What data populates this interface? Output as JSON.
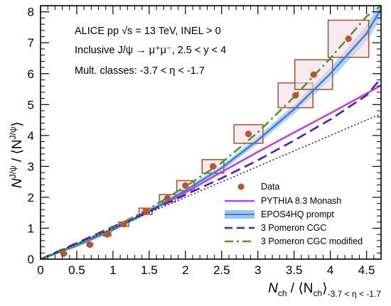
{
  "chart_data": {
    "type": "scatter",
    "title": "",
    "xlabel": {
      "main": "N",
      "main_sub": "ch",
      "mid": " / ⟨N",
      "mid_sub": "ch",
      "close": "⟩",
      "range_sub": "-3.7 < η < -1.7"
    },
    "ylabel": {
      "main": "N",
      "main_sup": "J/ψ",
      "mid": " / ⟨N",
      "mid_sup": "J/ψ",
      "close": "⟩"
    },
    "xlim": [
      0,
      4.7
    ],
    "ylim": [
      0,
      8.2
    ],
    "x_ticks": [
      0,
      0.5,
      1,
      1.5,
      2,
      2.5,
      3,
      3.5,
      4,
      4.5
    ],
    "x_tick_labels": [
      "0",
      "0.5",
      "1",
      "1.5",
      "2",
      "2.5",
      "3",
      "3.5",
      "4",
      "4.5"
    ],
    "y_ticks": [
      0,
      1,
      2,
      3,
      4,
      5,
      6,
      7,
      8
    ],
    "y_tick_labels": [
      "0",
      "1",
      "2",
      "3",
      "4",
      "5",
      "6",
      "7",
      "8"
    ],
    "grid": false,
    "legend_position": "bottom-right",
    "annotations": {
      "line1": "ALICE pp √s = 13 TeV, INEL > 0",
      "line2": "Inclusive J/ψ → μ⁺μ⁻, 2.5 < y < 4",
      "line3": "Mult. classes: -3.7 < η < -1.7"
    },
    "data": {
      "name": "Data",
      "color": "#c0522a",
      "box_color": "#a0522d",
      "box_fill": "#f6d8e2",
      "points": [
        {
          "x": 0.32,
          "y": 0.18,
          "sx": 0.04,
          "sy": 0.02
        },
        {
          "x": 0.68,
          "y": 0.47,
          "sx": 0.04,
          "sy": 0.04
        },
        {
          "x": 0.92,
          "y": 0.8,
          "sx": 0.05,
          "sy": 0.05
        },
        {
          "x": 1.15,
          "y": 1.13,
          "sx": 0.07,
          "sy": 0.07
        },
        {
          "x": 1.45,
          "y": 1.55,
          "sx": 0.09,
          "sy": 0.1
        },
        {
          "x": 1.75,
          "y": 1.97,
          "sx": 0.11,
          "sy": 0.12
        },
        {
          "x": 2.0,
          "y": 2.38,
          "sx": 0.12,
          "sy": 0.16
        },
        {
          "x": 2.38,
          "y": 3.0,
          "sx": 0.15,
          "sy": 0.22
        },
        {
          "x": 2.87,
          "y": 4.05,
          "sx": 0.2,
          "sy": 0.3
        },
        {
          "x": 3.52,
          "y": 5.3,
          "sx": 0.24,
          "sy": 0.4
        },
        {
          "x": 3.77,
          "y": 5.97,
          "sx": 0.26,
          "sy": 0.48
        },
        {
          "x": 4.25,
          "y": 7.13,
          "sx": 0.28,
          "sy": 0.6
        }
      ]
    },
    "series": [
      {
        "name": "PYTHIA 8.3 Monash",
        "color": "#c041e0",
        "style": "solid",
        "x": [
          0,
          0.5,
          1,
          1.5,
          2,
          2.5,
          3,
          3.5,
          4,
          4.5,
          4.7
        ],
        "y": [
          0,
          0.45,
          0.98,
          1.55,
          2.15,
          2.82,
          3.47,
          4.1,
          4.72,
          5.36,
          5.62
        ]
      },
      {
        "name": "EPOS4HQ prompt",
        "color": "#3b82d8",
        "band_color": "#9dc3f0",
        "style": "band",
        "x": [
          0,
          0.5,
          1,
          1.5,
          2,
          2.5,
          3,
          3.5,
          4,
          4.5,
          4.7
        ],
        "y": [
          0,
          0.43,
          0.95,
          1.55,
          2.22,
          2.95,
          3.85,
          4.85,
          6.0,
          7.3,
          8.1
        ],
        "band_halfwidth": [
          0.02,
          0.03,
          0.05,
          0.07,
          0.08,
          0.1,
          0.12,
          0.15,
          0.2,
          0.26,
          0.3
        ]
      },
      {
        "name": "3 Pomeron CGC",
        "color": "#4a1fb8",
        "style": "dashed",
        "x": [
          0,
          0.5,
          1,
          1.5,
          2,
          2.5,
          3,
          3.5,
          4,
          4.5,
          4.7
        ],
        "y": [
          0,
          0.52,
          1.05,
          1.55,
          2.08,
          2.62,
          3.2,
          3.84,
          4.52,
          5.3,
          5.85
        ]
      },
      {
        "name": "3 Pomeron CGC modified",
        "color": "#4c9a2a",
        "style": "dashdot",
        "x": [
          0,
          0.5,
          1,
          1.5,
          2,
          2.5,
          3,
          3.5,
          4,
          4.5,
          4.7
        ],
        "y": [
          0,
          0.48,
          1.02,
          1.63,
          2.35,
          3.12,
          4.1,
          5.25,
          6.5,
          7.85,
          8.2
        ]
      },
      {
        "name": "",
        "color": "#000000",
        "style": "dotted",
        "x": [
          0,
          4.7
        ],
        "y": [
          0,
          4.7
        ]
      }
    ]
  }
}
